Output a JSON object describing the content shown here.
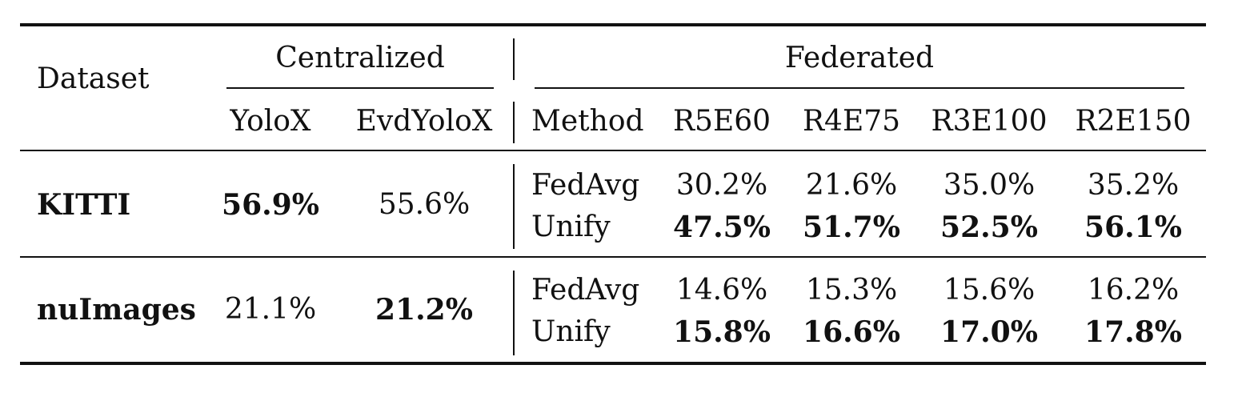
{
  "table": {
    "header": {
      "dataset": "Dataset",
      "centralized": "Centralized",
      "federated": "Federated",
      "yolox": "YoloX",
      "evdyolox": "EvdYoloX",
      "method": "Method",
      "configs": [
        "R5E60",
        "R4E75",
        "R3E100",
        "R2E150"
      ]
    },
    "rows": [
      {
        "dataset": "KITTI",
        "yolox": "56.9%",
        "evdyolox": "55.6%",
        "bold_centralized": "yolox",
        "methods": [
          {
            "name": "FedAvg",
            "values": [
              "30.2%",
              "21.6%",
              "35.0%",
              "35.2%"
            ]
          },
          {
            "name": "Unify",
            "values": [
              "47.5%",
              "51.7%",
              "52.5%",
              "56.1%"
            ]
          }
        ]
      },
      {
        "dataset": "nuImages",
        "yolox": "21.1%",
        "evdyolox": "21.2%",
        "bold_centralized": "evdyolox",
        "methods": [
          {
            "name": "FedAvg",
            "values": [
              "14.6%",
              "15.3%",
              "15.6%",
              "16.2%"
            ]
          },
          {
            "name": "Unify",
            "values": [
              "15.8%",
              "16.6%",
              "17.0%",
              "17.8%"
            ]
          }
        ]
      }
    ]
  }
}
